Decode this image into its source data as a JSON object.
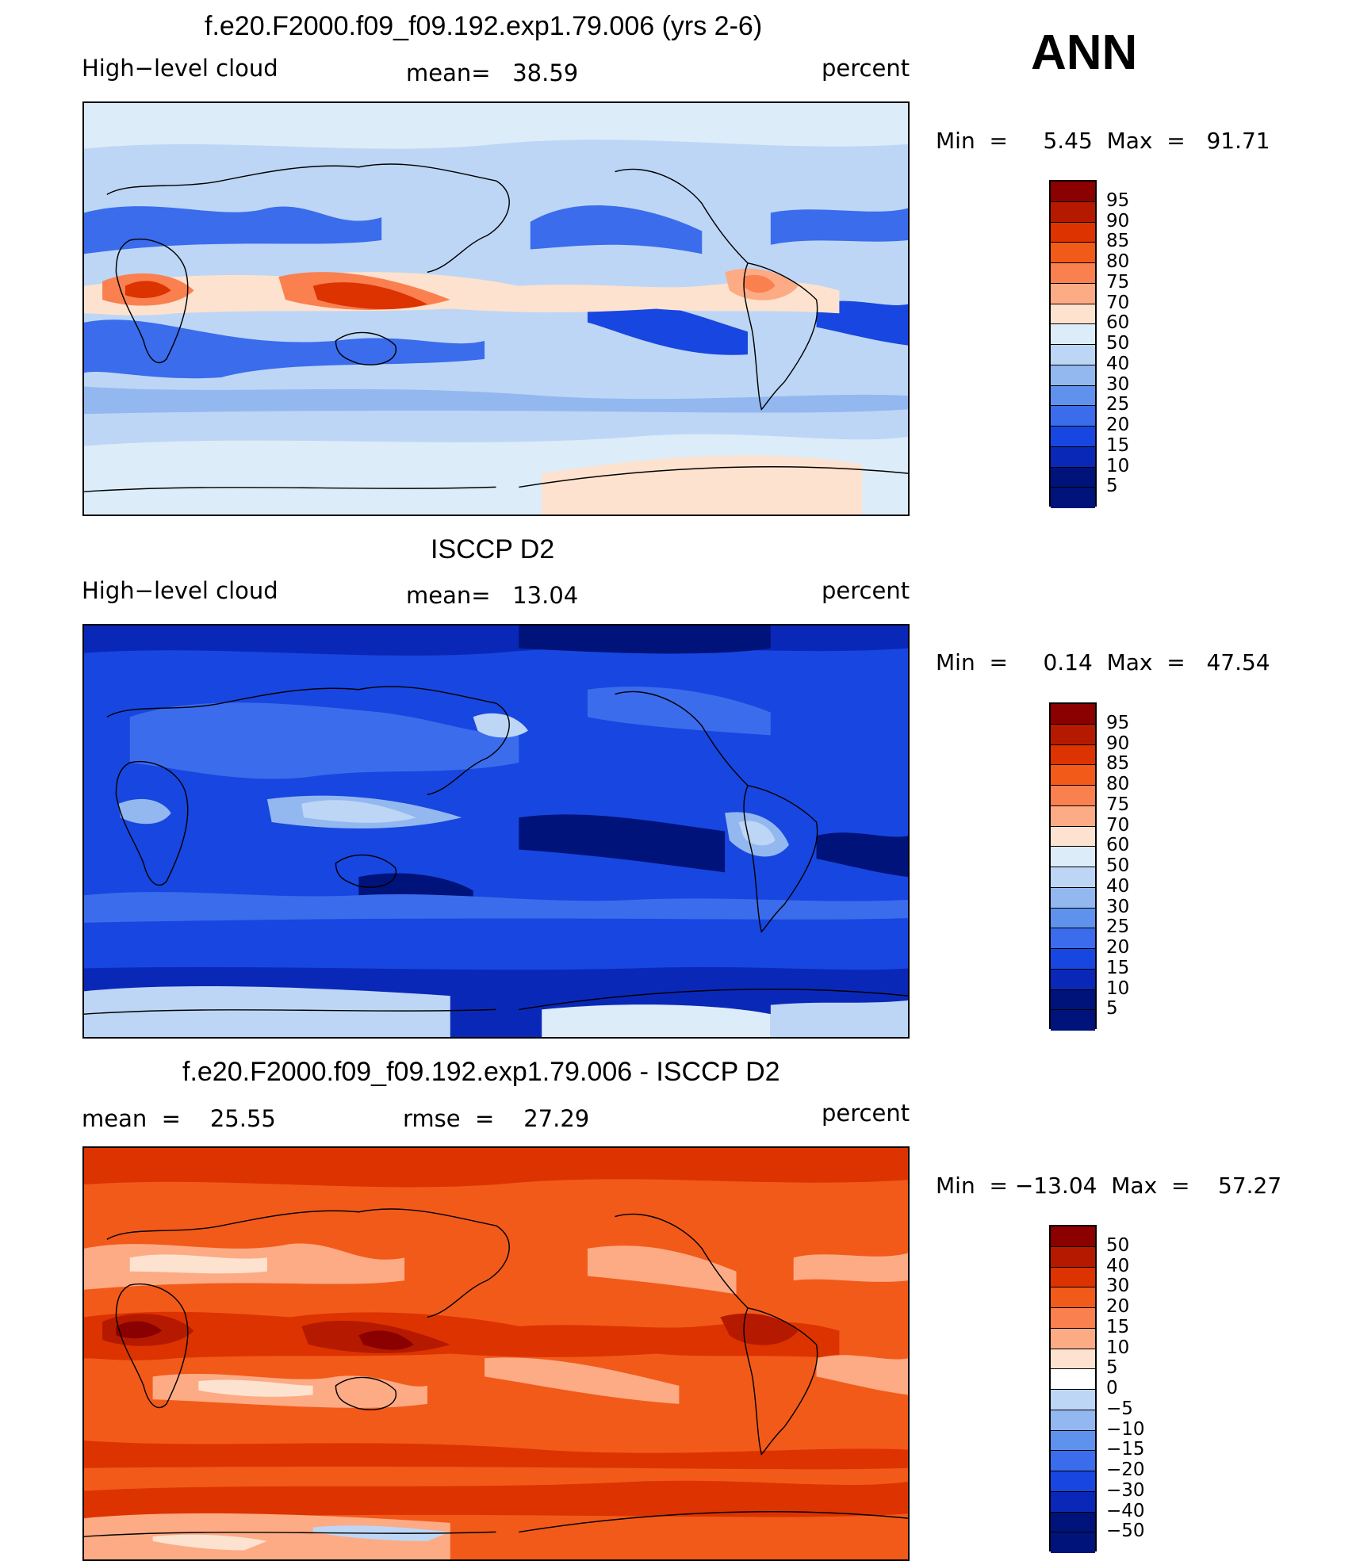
{
  "season": "ANN",
  "coast_color": "#000000",
  "panels": [
    {
      "title": "f.e20.F2000.f09_f09.192.exp1.79.006 (yrs 2-6)",
      "left_label": "High−level cloud",
      "center_label": "mean=   38.59",
      "units": "percent",
      "minmax": "Min  =     5.45  Max  =   91.71",
      "levels": [
        "95",
        "90",
        "85",
        "80",
        "75",
        "70",
        "60",
        "50",
        "40",
        "30",
        "25",
        "20",
        "15",
        "10",
        "5"
      ],
      "colors": [
        "#8b0000",
        "#b51a00",
        "#dd3300",
        "#f25a1a",
        "#fa8050",
        "#fcab85",
        "#fde2cf",
        "#dcecf9",
        "#bdd6f5",
        "#93b8f0",
        "#5f92ed",
        "#3a6cec",
        "#1846e0",
        "#0a28b8",
        "#00137a"
      ],
      "background_level": "#bdd6f5",
      "field": [
        {
          "fill": "#dcecf9",
          "region": "high-latitude-north",
          "label_value": ""
        },
        {
          "fill": "#3a6cec",
          "region": "subtropics",
          "label_value": ""
        },
        {
          "fill": "#fcab85",
          "region": "tropics",
          "label_value": ""
        },
        {
          "fill": "#dd3300",
          "region": "maritime-continent",
          "label_value": ""
        }
      ]
    },
    {
      "title": "ISCCP D2",
      "left_label": "High−level cloud",
      "center_label": "mean=   13.04",
      "units": "percent",
      "minmax": "Min  =     0.14  Max  =   47.54",
      "levels": [
        "95",
        "90",
        "85",
        "80",
        "75",
        "70",
        "60",
        "50",
        "40",
        "30",
        "25",
        "20",
        "15",
        "10",
        "5"
      ],
      "colors": [
        "#8b0000",
        "#b51a00",
        "#dd3300",
        "#f25a1a",
        "#fa8050",
        "#fcab85",
        "#fde2cf",
        "#dcecf9",
        "#bdd6f5",
        "#93b8f0",
        "#5f92ed",
        "#3a6cec",
        "#1846e0",
        "#0a28b8",
        "#00137a"
      ],
      "background_level": "#1846e0"
    },
    {
      "title": "f.e20.F2000.f09_f09.192.exp1.79.006 - ISCCP D2",
      "left_label": "mean  =    25.55",
      "center_label": "rmse  =    27.29",
      "units": "percent",
      "minmax": "Min  = −13.04  Max  =    57.27",
      "levels": [
        "50",
        "40",
        "30",
        "20",
        "15",
        "10",
        "5",
        "0",
        "−5",
        "−10",
        "−15",
        "−20",
        "−30",
        "−40",
        "−50"
      ],
      "colors": [
        "#8b0000",
        "#b51a00",
        "#dd3300",
        "#f25a1a",
        "#fa8050",
        "#fcab85",
        "#fde2cf",
        "#ffffff",
        "#bdd6f5",
        "#93b8f0",
        "#5f92ed",
        "#3a6cec",
        "#1846e0",
        "#0a28b8",
        "#00137a"
      ],
      "background_level": "#f25a1a"
    }
  ]
}
